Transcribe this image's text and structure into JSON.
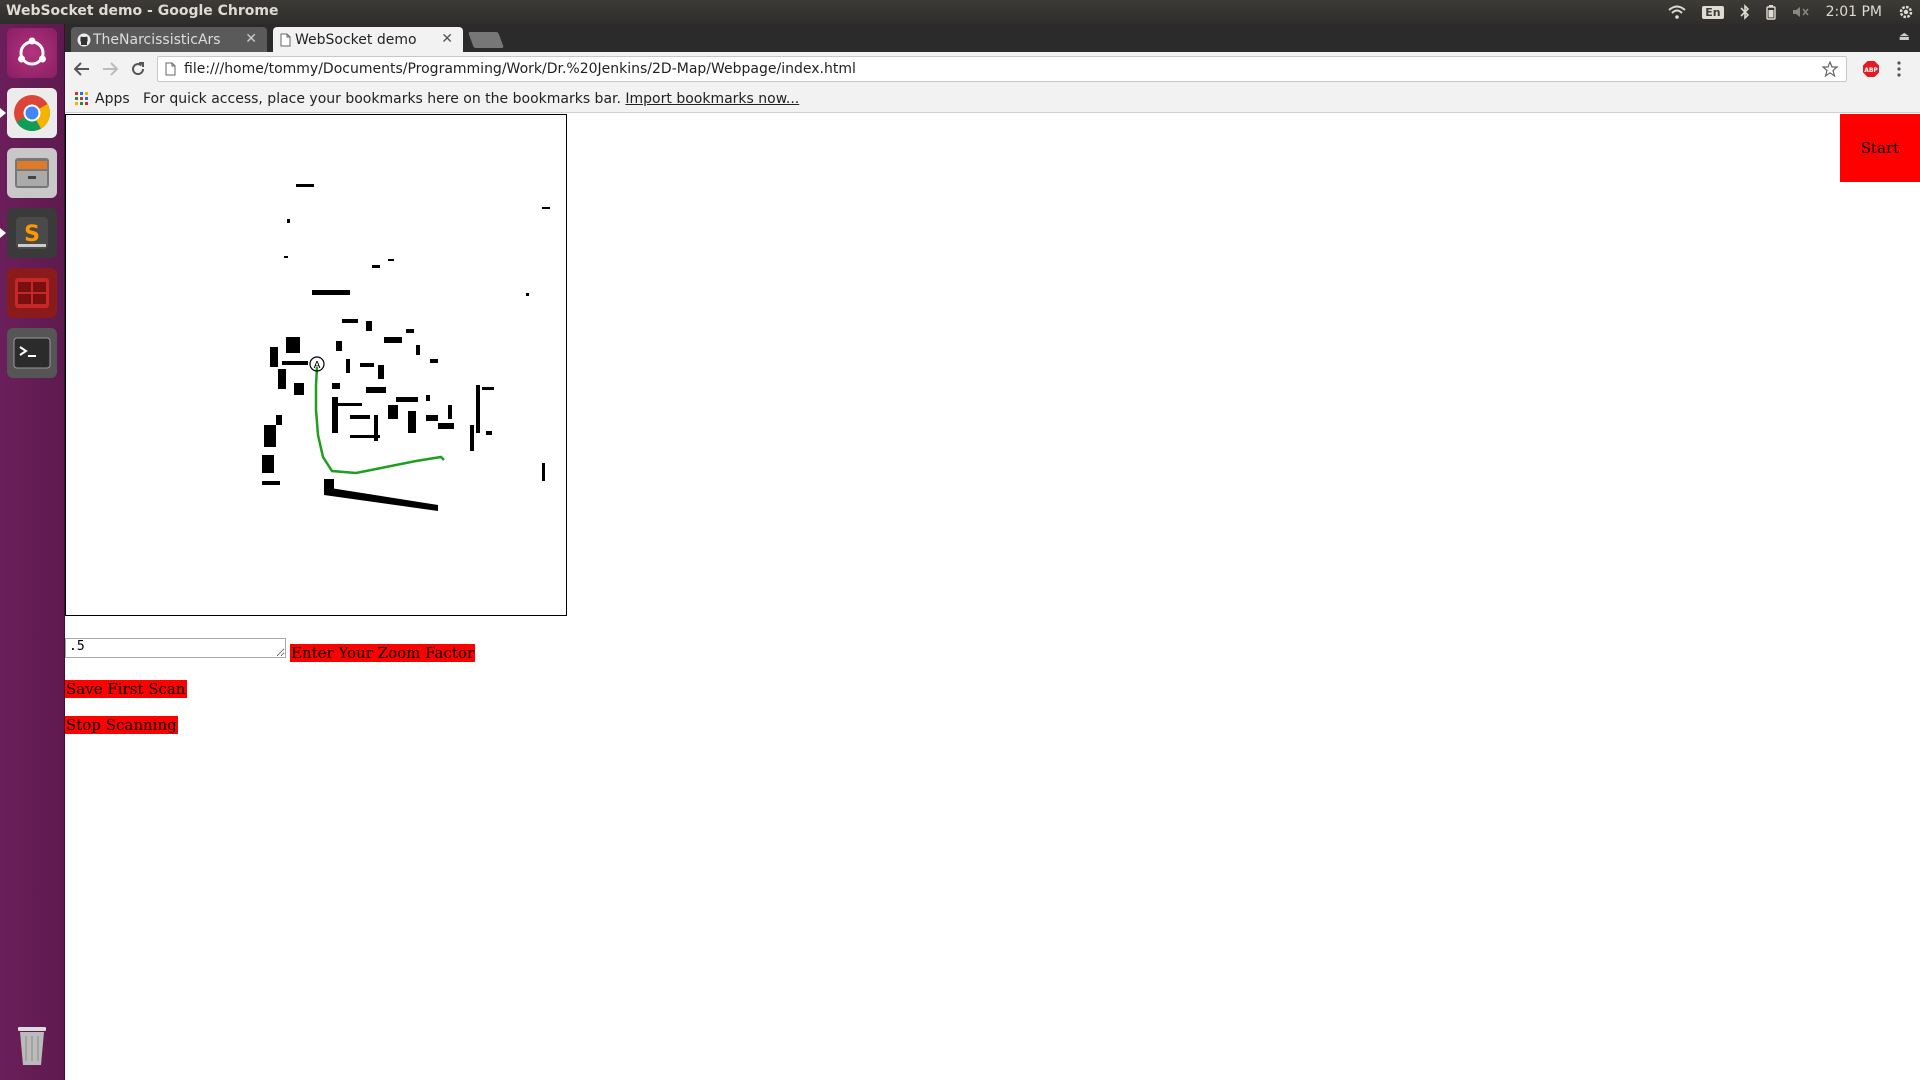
{
  "window_title": "WebSocket demo - Google Chrome",
  "tray": {
    "keyboard_layout": "En",
    "clock": "2:01 PM"
  },
  "tabs": [
    {
      "label": "TheNarcissisticArsenal",
      "active": false
    },
    {
      "label": "WebSocket demo",
      "active": true
    }
  ],
  "omnibox": {
    "url": "file:///home/tommy/Documents/Programming/Work/Dr.%20Jenkins/2D-Map/Webpage/index.html"
  },
  "bookmarks_bar": {
    "apps_label": "Apps",
    "hint": "For quick access, place your bookmarks here on the bookmarks bar.",
    "import_link": "Import bookmarks now..."
  },
  "page": {
    "start_button": "Start",
    "zoom_input_value": ".5",
    "zoom_label": "Enter Your Zoom Factor",
    "save_first_scan": "Save First Scan",
    "stop_scanning": "Stop Scanning",
    "map_marker_label": "A"
  },
  "colors": {
    "accent_red": "#ff0000",
    "path_green": "#1f9e1f",
    "launcher": "#5e1a4f"
  },
  "launcher_icons": [
    "ubuntu-dash-icon",
    "chrome-icon",
    "files-icon",
    "sublime-text-icon",
    "app-grid-icon",
    "terminal-icon",
    "trash-icon"
  ]
}
